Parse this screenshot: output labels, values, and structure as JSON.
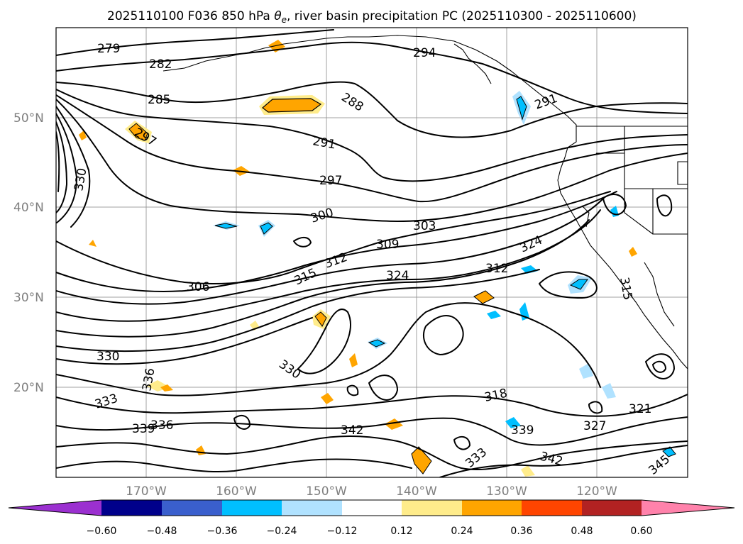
{
  "title_main": "2025110100 F036 850 hPa",
  "title_symbol": "θ",
  "title_subscript": "e",
  "title_rest": ", river basin precipitation PC (2025110300 - 2025110600)",
  "lat_labels": [
    "50°N",
    "40°N",
    "30°N",
    "20°N"
  ],
  "lon_labels": [
    "170°W",
    "160°W",
    "150°W",
    "140°W",
    "130°W",
    "120°W"
  ],
  "contour_labels": [
    "279",
    "282",
    "285",
    "288",
    "291",
    "291",
    "294",
    "297",
    "297",
    "300",
    "303",
    "306",
    "309",
    "312",
    "312",
    "315",
    "315",
    "318",
    "321",
    "324",
    "324",
    "327",
    "330",
    "330",
    "330",
    "333",
    "333",
    "336",
    "336",
    "339",
    "339",
    "342",
    "342",
    "345"
  ],
  "colorbar": {
    "ticks": [
      "−0.60",
      "−0.48",
      "−0.36",
      "−0.24",
      "−0.12",
      "0.12",
      "0.24",
      "0.36",
      "0.48",
      "0.60"
    ],
    "colors": [
      "#9b30d0",
      "#00008b",
      "#3a5fcd",
      "#00bfff",
      "#b0e2ff",
      "#ffffff",
      "#ffec8b",
      "#ffa500",
      "#ff4500",
      "#b22222",
      "#ff82ab"
    ]
  }
}
